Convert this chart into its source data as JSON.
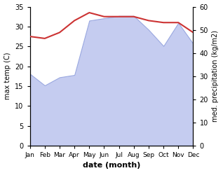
{
  "months": [
    "Jan",
    "Feb",
    "Mar",
    "Apr",
    "May",
    "Jun",
    "Jul",
    "Aug",
    "Sep",
    "Oct",
    "Nov",
    "Dec"
  ],
  "month_x": [
    0,
    1,
    2,
    3,
    4,
    5,
    6,
    7,
    8,
    9,
    10,
    11
  ],
  "temperature": [
    27.5,
    27.0,
    28.5,
    31.5,
    33.5,
    32.5,
    32.5,
    32.5,
    31.5,
    31.0,
    31.0,
    28.5
  ],
  "precipitation": [
    31.0,
    26.0,
    29.5,
    30.5,
    54.0,
    55.0,
    56.0,
    56.0,
    50.0,
    43.0,
    53.0,
    44.0
  ],
  "temp_color": "#cc3333",
  "precip_fill_color": "#c5ccf0",
  "precip_edge_color": "#9aa8e0",
  "background_color": "#ffffff",
  "ylabel_left": "max temp (C)",
  "ylabel_right": "med. precipitation (kg/m2)",
  "xlabel": "date (month)",
  "ylim_left": [
    0,
    35
  ],
  "ylim_right": [
    0,
    60
  ],
  "yticks_left": [
    0,
    5,
    10,
    15,
    20,
    25,
    30,
    35
  ],
  "yticks_right": [
    0,
    10,
    20,
    30,
    40,
    50,
    60
  ]
}
